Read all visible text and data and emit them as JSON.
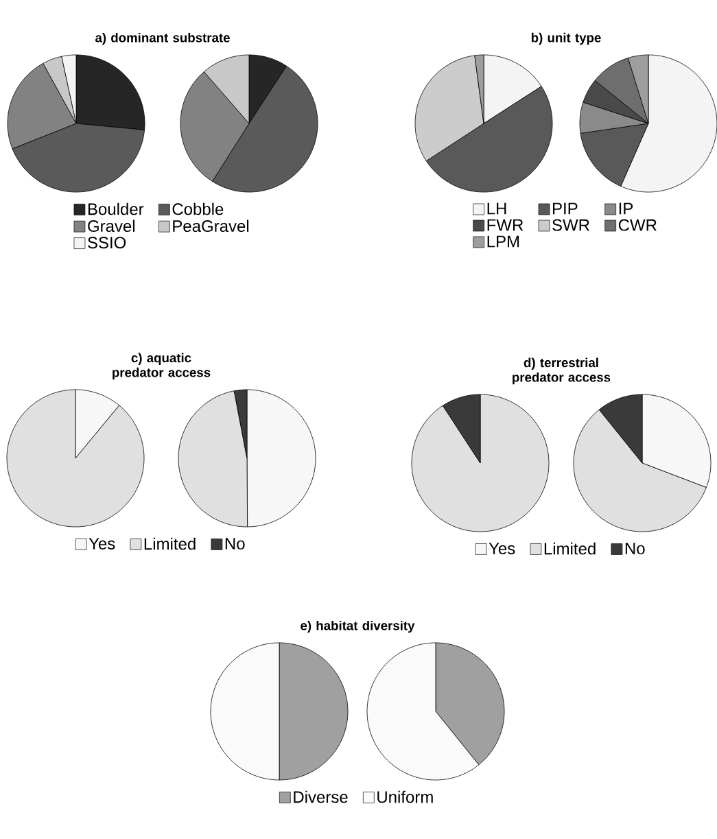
{
  "chart_data": [
    {
      "type": "pie",
      "title": "a) dominant substrate",
      "categories": [
        "Boulder",
        "Cobble",
        "Gravel",
        "PeaGravel",
        "SSIO"
      ],
      "colors": [
        "#262626",
        "#5a5a5a",
        "#828282",
        "#c8c8c8",
        "#f4f4f4"
      ],
      "legend": "bottom",
      "series": [
        {
          "values": [
            26.5,
            42.5,
            23,
            4.6,
            3.4
          ]
        },
        {
          "values": [
            9.2,
            49.8,
            29.6,
            11.4,
            0
          ]
        }
      ]
    },
    {
      "type": "pie",
      "title": "b) unit type",
      "categories": [
        "LH",
        "PIP",
        "IP",
        "FWR",
        "SWR",
        "CWR",
        "LPM"
      ],
      "colors": [
        "#f4f4f4",
        "#595959",
        "#8a8a8a",
        "#4a4a4a",
        "#cccccc",
        "#6e6e6e",
        "#9e9e9e"
      ],
      "legend": "bottom",
      "series": [
        {
          "values": [
            15.9,
            49.9,
            0,
            0,
            32.1,
            0,
            2.1
          ]
        },
        {
          "values": [
            56.6,
            16.1,
            7.3,
            5.8,
            0,
            9.4,
            4.8
          ]
        }
      ]
    },
    {
      "type": "pie",
      "title": "c) aquatic predator access",
      "categories": [
        "Yes",
        "Limited",
        "No"
      ],
      "colors": [
        "#f7f7f7",
        "#e0e0e0",
        "#3a3a3a"
      ],
      "legend": "bottom",
      "series": [
        {
          "values": [
            11,
            89,
            0
          ]
        },
        {
          "values": [
            49.9,
            47.1,
            3.0
          ]
        }
      ]
    },
    {
      "type": "pie",
      "title": "d) terrestrial predator access",
      "categories": [
        "Yes",
        "Limited",
        "No"
      ],
      "colors": [
        "#f7f7f7",
        "#e0e0e0",
        "#3a3a3a"
      ],
      "legend": "bottom",
      "series": [
        {
          "values": [
            0,
            90.8,
            9.2
          ]
        },
        {
          "values": [
            30.8,
            58.4,
            10.8
          ]
        }
      ]
    },
    {
      "type": "pie",
      "title": "e) habitat diversity",
      "categories": [
        "Diverse",
        "Uniform"
      ],
      "colors": [
        "#a0a0a0",
        "#fafafa"
      ],
      "legend": "bottom",
      "series": [
        {
          "values": [
            50,
            50
          ]
        },
        {
          "values": [
            39.2,
            60.8
          ]
        }
      ]
    }
  ]
}
